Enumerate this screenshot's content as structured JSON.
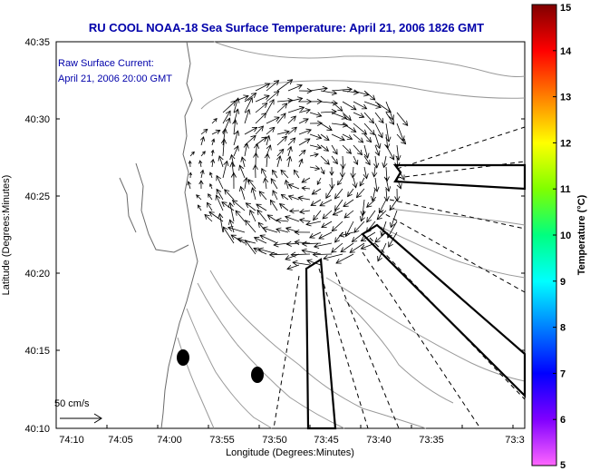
{
  "title": "RU COOL  NOAA-18  Sea Surface Temperature:  April 21, 2006 1826 GMT",
  "legend": {
    "line1": "Raw Surface Current:",
    "line2": "April 21, 2006 20:00 GMT"
  },
  "axes": {
    "xlabel": "Longitude (Degrees:Minutes)",
    "ylabel": "Latitude (Degrees:Minutes)",
    "x_ticks": [
      "74:10",
      "74:05",
      "74:00",
      "73:55",
      "73:50",
      "73:45",
      "73:40",
      "73:35",
      "73:3"
    ],
    "y_ticks": [
      "40:35",
      "40:30",
      "40:25",
      "40:20",
      "40:15",
      "40:10"
    ]
  },
  "scale_arrow": {
    "label": "50 cm/s"
  },
  "colorbar": {
    "label": "Temperature (°C)",
    "ticks": [
      "15",
      "14",
      "13",
      "12",
      "11",
      "10",
      "9",
      "8",
      "7",
      "6",
      "5"
    ],
    "colors": [
      "#ff66ff",
      "#8000ff",
      "#0000ff",
      "#0080ff",
      "#00ffff",
      "#00ff80",
      "#80ff00",
      "#ffff00",
      "#ff8000",
      "#ff0000",
      "#800000"
    ]
  },
  "colors": {
    "title": "#0000aa",
    "contour": "#9a9a9a",
    "vector": "#000000"
  },
  "chart_data": {
    "type": "map",
    "title": "RU COOL  NOAA-18  Sea Surface Temperature:  April 21, 2006 1826 GMT",
    "xlabel": "Longitude (Degrees:Minutes)",
    "ylabel": "Latitude (Degrees:Minutes)",
    "xlim_deg_west": [
      74.1667,
      73.55
    ],
    "ylim_deg_north": [
      40.1667,
      40.5833
    ],
    "colorbar_range_c": [
      5,
      15
    ],
    "vector_field": "rotating surface current eddy centered near 73:47 W, 40:28 N",
    "markers": [
      {
        "type": "filled-ellipse",
        "lon": "73:58.8",
        "lat": "40:14.5"
      },
      {
        "type": "filled-ellipse",
        "lon": "73:52.5",
        "lat": "40:13.4"
      }
    ]
  }
}
